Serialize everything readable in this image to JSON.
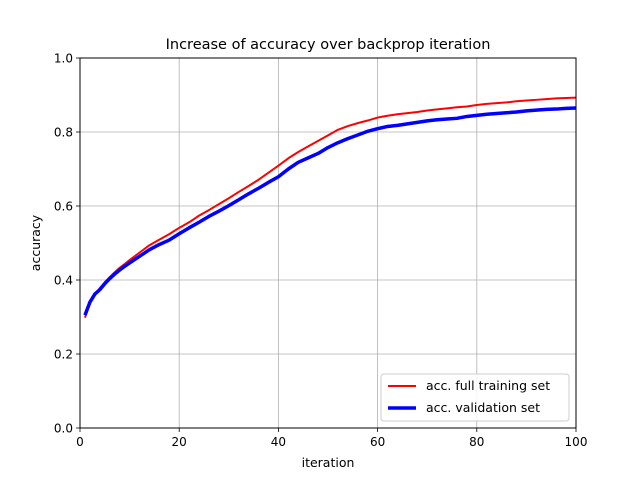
{
  "chart_data": {
    "type": "line",
    "title": "Increase of accuracy over backprop iteration",
    "xlabel": "iteration",
    "ylabel": "accuracy",
    "xlim": [
      0,
      100
    ],
    "ylim": [
      0.0,
      1.0
    ],
    "xticks": [
      0,
      20,
      40,
      60,
      80,
      100
    ],
    "xtick_labels": [
      "0",
      "20",
      "40",
      "60",
      "80",
      "100"
    ],
    "yticks": [
      0.0,
      0.2,
      0.4,
      0.6,
      0.8,
      1.0
    ],
    "ytick_labels": [
      "0.0",
      "0.2",
      "0.4",
      "0.6",
      "0.8",
      "1.0"
    ],
    "grid": true,
    "legend_position": "lower-right",
    "x": [
      1,
      2,
      3,
      4,
      5,
      6,
      7,
      8,
      9,
      10,
      12,
      14,
      16,
      18,
      20,
      22,
      24,
      26,
      28,
      30,
      32,
      34,
      36,
      38,
      40,
      42,
      44,
      46,
      48,
      50,
      52,
      54,
      56,
      58,
      60,
      62,
      64,
      66,
      68,
      70,
      72,
      74,
      76,
      78,
      80,
      82,
      84,
      86,
      88,
      90,
      92,
      94,
      96,
      98,
      100
    ],
    "series": [
      {
        "name": "acc. full training set",
        "color": "#ff0000",
        "values": [
          0.298,
          0.338,
          0.36,
          0.378,
          0.394,
          0.408,
          0.421,
          0.433,
          0.443,
          0.454,
          0.474,
          0.494,
          0.509,
          0.524,
          0.541,
          0.556,
          0.574,
          0.589,
          0.605,
          0.621,
          0.638,
          0.654,
          0.671,
          0.69,
          0.709,
          0.729,
          0.746,
          0.761,
          0.776,
          0.791,
          0.806,
          0.816,
          0.824,
          0.831,
          0.839,
          0.844,
          0.848,
          0.851,
          0.854,
          0.858,
          0.861,
          0.864,
          0.867,
          0.869,
          0.873,
          0.876,
          0.878,
          0.88,
          0.883,
          0.885,
          0.887,
          0.889,
          0.891,
          0.892,
          0.893
        ]
      },
      {
        "name": "acc. validation set",
        "color": "#0000ff",
        "values": [
          0.305,
          0.34,
          0.362,
          0.374,
          0.39,
          0.404,
          0.416,
          0.427,
          0.437,
          0.446,
          0.464,
          0.482,
          0.496,
          0.508,
          0.525,
          0.541,
          0.556,
          0.572,
          0.586,
          0.601,
          0.617,
          0.633,
          0.648,
          0.664,
          0.679,
          0.7,
          0.718,
          0.73,
          0.742,
          0.758,
          0.771,
          0.782,
          0.792,
          0.802,
          0.809,
          0.815,
          0.818,
          0.822,
          0.826,
          0.83,
          0.833,
          0.835,
          0.837,
          0.842,
          0.845,
          0.848,
          0.85,
          0.852,
          0.854,
          0.857,
          0.859,
          0.861,
          0.862,
          0.864,
          0.865
        ]
      }
    ]
  }
}
